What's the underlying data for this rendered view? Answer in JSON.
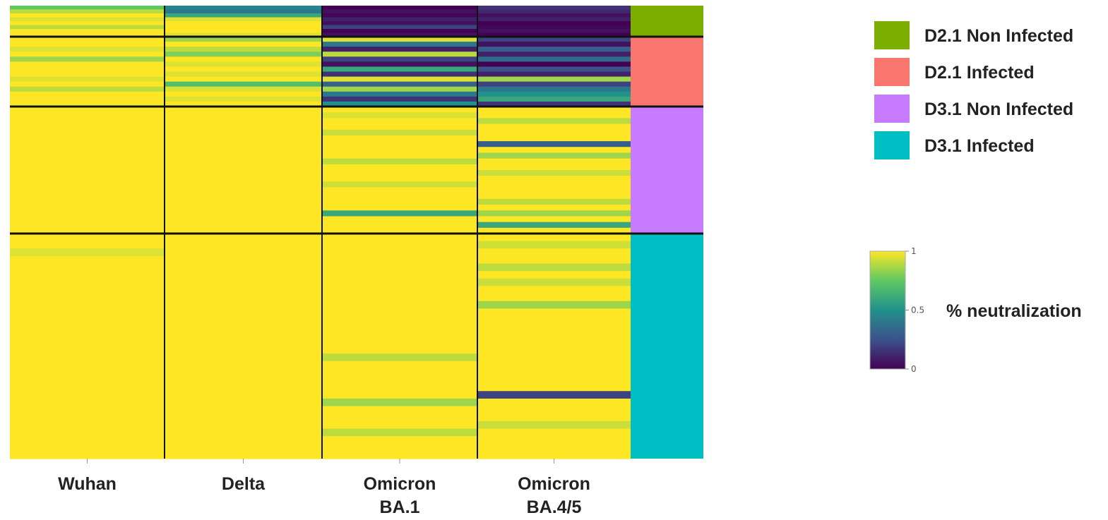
{
  "chart_data": {
    "type": "heatmap",
    "columns": [
      "Wuhan",
      "Delta",
      "Omicron\nBA.1",
      "Omicron\nBA.4/5"
    ],
    "column_labels": [
      {
        "line1": "Wuhan",
        "line2": ""
      },
      {
        "line1": "Delta",
        "line2": ""
      },
      {
        "line1": "Omicron",
        "line2": "BA.1"
      },
      {
        "line1": "Omicron",
        "line2": "BA.4/5"
      }
    ],
    "groups": [
      {
        "name": "D2.1 Non Infected",
        "color": "#7CAE00",
        "values": [
          [
            0.75,
            0.45,
            0.0,
            0.15
          ],
          [
            0.9,
            0.4,
            0.05,
            0.12
          ],
          [
            1.0,
            0.6,
            0.02,
            0.05
          ],
          [
            0.95,
            0.95,
            0.1,
            0.1
          ],
          [
            1.0,
            1.0,
            0.05,
            0.0
          ],
          [
            0.9,
            1.0,
            0.2,
            0.02
          ],
          [
            1.0,
            1.0,
            0.0,
            0.05
          ],
          [
            1.0,
            0.95,
            0.05,
            0.0
          ]
        ]
      },
      {
        "name": "D2.1 Infected",
        "color": "#F8766D",
        "values": [
          [
            1.0,
            0.85,
            0.95,
            0.2
          ],
          [
            1.0,
            1.0,
            0.4,
            0.05
          ],
          [
            0.95,
            0.9,
            0.1,
            0.3
          ],
          [
            1.0,
            0.8,
            0.9,
            0.1
          ],
          [
            0.85,
            1.0,
            0.2,
            0.35
          ],
          [
            1.0,
            0.95,
            0.05,
            0.0
          ],
          [
            1.0,
            1.0,
            0.6,
            0.25
          ],
          [
            1.0,
            0.95,
            0.15,
            0.1
          ],
          [
            0.95,
            1.0,
            0.95,
            0.85
          ],
          [
            1.0,
            0.7,
            0.3,
            0.2
          ],
          [
            0.9,
            0.95,
            0.85,
            0.4
          ],
          [
            1.0,
            1.0,
            0.4,
            0.5
          ],
          [
            1.0,
            0.95,
            0.15,
            0.6
          ],
          [
            1.0,
            1.0,
            0.5,
            0.15
          ]
        ]
      },
      {
        "name": "D3.1 Non Infected",
        "color": "#C77CFF",
        "values": [
          [
            1,
            1,
            1,
            1
          ],
          [
            1,
            1,
            0.95,
            1
          ],
          [
            1,
            1,
            1,
            0.9
          ],
          [
            1,
            1,
            1,
            1
          ],
          [
            1,
            1,
            0.92,
            1
          ],
          [
            1,
            1,
            1,
            1
          ],
          [
            1,
            1,
            1,
            0.3
          ],
          [
            1,
            1,
            1,
            1
          ],
          [
            1,
            1,
            1,
            0.85
          ],
          [
            1,
            1,
            0.9,
            1
          ],
          [
            1,
            1,
            1,
            1
          ],
          [
            1,
            1,
            1,
            0.92
          ],
          [
            1,
            1,
            1,
            1
          ],
          [
            1,
            1,
            0.93,
            1
          ],
          [
            1,
            1,
            1,
            1
          ],
          [
            1,
            1,
            1,
            1
          ],
          [
            1,
            1,
            1,
            0.9
          ],
          [
            1,
            1,
            1,
            1
          ],
          [
            1,
            1,
            0.6,
            0.85
          ],
          [
            1,
            1,
            1,
            1
          ],
          [
            1,
            1,
            1,
            0.6
          ],
          [
            1,
            1,
            1,
            1
          ]
        ]
      },
      {
        "name": "D3.1 Infected",
        "color": "#00BFC4",
        "values": [
          [
            1,
            1,
            1,
            1
          ],
          [
            1,
            1,
            1,
            0.93
          ],
          [
            0.95,
            1,
            1,
            1
          ],
          [
            1,
            1,
            1,
            1
          ],
          [
            1,
            1,
            1,
            0.9
          ],
          [
            1,
            1,
            1,
            1
          ],
          [
            1,
            1,
            1,
            0.92
          ],
          [
            1,
            1,
            1,
            1
          ],
          [
            1,
            1,
            1,
            1
          ],
          [
            1,
            1,
            1,
            0.85
          ],
          [
            1,
            1,
            1,
            1
          ],
          [
            1,
            1,
            1,
            1
          ],
          [
            1,
            1,
            1,
            1
          ],
          [
            1,
            1,
            1,
            1
          ],
          [
            1,
            1,
            1,
            1
          ],
          [
            1,
            1,
            1,
            1
          ],
          [
            1,
            1,
            0.9,
            1
          ],
          [
            1,
            1,
            1,
            1
          ],
          [
            1,
            1,
            1,
            1
          ],
          [
            1,
            1,
            1,
            1
          ],
          [
            1,
            1,
            1,
            1
          ],
          [
            1,
            1,
            1,
            0.2
          ],
          [
            1,
            1,
            0.85,
            1
          ],
          [
            1,
            1,
            1,
            1
          ],
          [
            1,
            1,
            1,
            1
          ],
          [
            1,
            1,
            1,
            0.92
          ],
          [
            1,
            1,
            0.9,
            1
          ],
          [
            1,
            1,
            1,
            1
          ],
          [
            1,
            1,
            1,
            1
          ],
          [
            1,
            1,
            1,
            1
          ]
        ]
      }
    ],
    "colorbar": {
      "label": "% neutralization",
      "range": [
        0,
        1
      ],
      "ticks": [
        {
          "value": 1,
          "label": "1"
        },
        {
          "value": 0.5,
          "label": "0.5"
        },
        {
          "value": 0,
          "label": "0"
        }
      ],
      "palette": "viridis"
    },
    "legend": {
      "position": "right"
    }
  }
}
